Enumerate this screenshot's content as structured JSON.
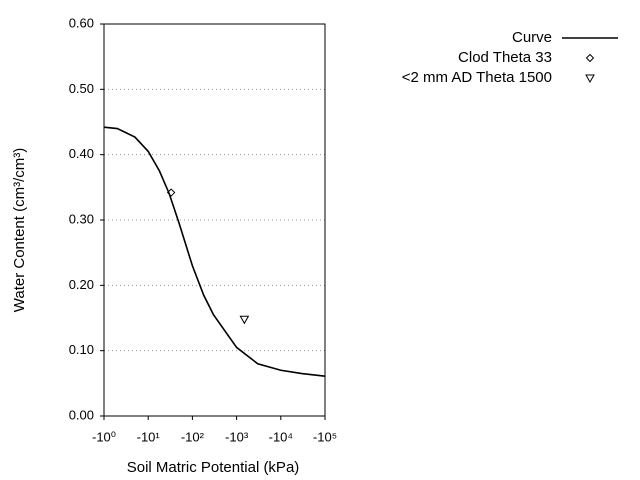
{
  "chart_data": {
    "type": "line",
    "x_label": "Soil Matric Potential (kPa)",
    "y_label": "Water Content (cm³/cm³)",
    "xscale": "log",
    "grid": true,
    "legend": "top-right",
    "xlim": [
      -1,
      -100000
    ],
    "xticks": [
      {
        "value": -1,
        "label": "-10⁰"
      },
      {
        "value": -10,
        "label": "-10¹"
      },
      {
        "value": -100,
        "label": "-10²"
      },
      {
        "value": -1000,
        "label": "-10³"
      },
      {
        "value": -10000,
        "label": "-10⁴"
      },
      {
        "value": -100000,
        "label": "-10⁵"
      }
    ],
    "ylim": [
      0,
      0.6
    ],
    "yticks": [
      {
        "value": 0,
        "label": "0.00"
      },
      {
        "value": 0.1,
        "label": "0.10"
      },
      {
        "value": 0.2,
        "label": "0.20"
      },
      {
        "value": 0.3,
        "label": "0.30"
      },
      {
        "value": 0.4,
        "label": "0.40"
      },
      {
        "value": 0.5,
        "label": "0.50"
      },
      {
        "value": 0.6,
        "label": "0.60"
      }
    ],
    "series": [
      {
        "name": "Curve",
        "type": "line",
        "color": "#000000",
        "x": [
          -1,
          -2,
          -5,
          -10,
          -18,
          -30,
          -50,
          -100,
          -180,
          -300,
          -1000,
          -3000,
          -10000,
          -30000,
          -100000
        ],
        "values": [
          0.442,
          0.44,
          0.427,
          0.405,
          0.375,
          0.34,
          0.295,
          0.23,
          0.185,
          0.155,
          0.105,
          0.08,
          0.07,
          0.065,
          0.061
        ]
      },
      {
        "name": "Clod Theta 33",
        "type": "scatter",
        "marker": "diamond",
        "color": "#000000",
        "x": [
          -33
        ],
        "values": [
          0.342
        ]
      },
      {
        "name": "<2 mm AD Theta 1500",
        "type": "scatter",
        "marker": "triangle-down",
        "color": "#000000",
        "x": [
          -1500
        ],
        "values": [
          0.148
        ]
      }
    ]
  }
}
